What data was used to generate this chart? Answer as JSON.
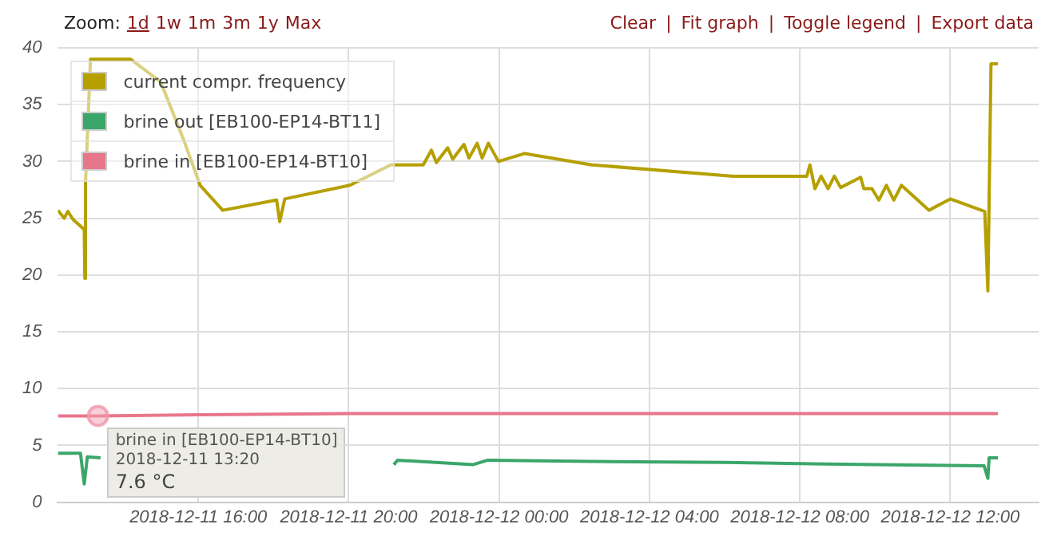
{
  "chart_data": {
    "type": "line",
    "xlim": [
      "2018-12-11T12:16",
      "2018-12-12T14:21"
    ],
    "xticks": [
      {
        "value": "2018-12-11T16:00",
        "label": "2018-12-11 16:00"
      },
      {
        "value": "2018-12-11T20:00",
        "label": "2018-12-11 20:00"
      },
      {
        "value": "2018-12-12T00:00",
        "label": "2018-12-12 00:00"
      },
      {
        "value": "2018-12-12T04:00",
        "label": "2018-12-12 04:00"
      },
      {
        "value": "2018-12-12T08:00",
        "label": "2018-12-12 08:00"
      },
      {
        "value": "2018-12-12T12:00",
        "label": "2018-12-12 12:00"
      }
    ],
    "ylim": [
      0,
      40
    ],
    "yticks": [
      0,
      5,
      10,
      15,
      20,
      25,
      30,
      35,
      40
    ],
    "grid": true,
    "legend": "top left",
    "marker": "none",
    "line_style": "solid",
    "series": [
      {
        "name": "current compr. frequency",
        "color": "#b5a000",
        "x": [
          "2018-12-11T12:16",
          "2018-12-11T12:26",
          "2018-12-11T12:32",
          "2018-12-11T12:40",
          "2018-12-11T12:58",
          "2018-12-11T12:59",
          "2018-12-11T13:00",
          "2018-12-11T13:08",
          "2018-12-11T14:12",
          "2018-12-11T15:00",
          "2018-12-11T15:36",
          "2018-12-11T16:03",
          "2018-12-11T16:39",
          "2018-12-11T18:05",
          "2018-12-11T18:10",
          "2018-12-11T18:18",
          "2018-12-11T20:02",
          "2018-12-11T21:07",
          "2018-12-11T21:59",
          "2018-12-11T22:12",
          "2018-12-11T22:20",
          "2018-12-11T22:38",
          "2018-12-11T22:46",
          "2018-12-11T23:04",
          "2018-12-11T23:12",
          "2018-12-11T23:25",
          "2018-12-11T23:33",
          "2018-12-11T23:43",
          "2018-12-11T23:59",
          "2018-12-12T00:41",
          "2018-12-12T02:28",
          "2018-12-12T06:14",
          "2018-12-12T08:11",
          "2018-12-12T08:16",
          "2018-12-12T08:24",
          "2018-12-12T08:34",
          "2018-12-12T08:45",
          "2018-12-12T08:55",
          "2018-12-12T09:05",
          "2018-12-12T09:37",
          "2018-12-12T09:42",
          "2018-12-12T09:55",
          "2018-12-12T10:06",
          "2018-12-12T10:18",
          "2018-12-12T10:30",
          "2018-12-12T10:42",
          "2018-12-12T11:26",
          "2018-12-12T12:00",
          "2018-12-12T12:55",
          "2018-12-12T13:00",
          "2018-12-12T13:05",
          "2018-12-12T13:16"
        ],
        "values": [
          25.7,
          25.0,
          25.6,
          24.9,
          24.0,
          19.7,
          28.0,
          39.0,
          39.0,
          37.0,
          32.0,
          27.9,
          25.7,
          26.6,
          24.7,
          26.7,
          27.9,
          29.7,
          29.7,
          31.0,
          29.9,
          31.2,
          30.2,
          31.5,
          30.3,
          31.6,
          30.3,
          31.6,
          30.0,
          30.7,
          29.7,
          28.7,
          28.7,
          29.7,
          27.6,
          28.7,
          27.6,
          28.7,
          27.7,
          28.6,
          27.6,
          27.6,
          26.6,
          27.9,
          26.6,
          27.9,
          25.7,
          26.7,
          25.6,
          18.6,
          38.6,
          38.6
        ]
      },
      {
        "name": "brine out [EB100-EP14-BT11]",
        "color": "#3aa66a",
        "x": [
          "2018-12-11T12:16",
          "2018-12-11T12:52",
          "2018-12-11T12:58",
          "2018-12-11T13:03",
          "2018-12-11T13:24",
          "2018-12-11T18:00",
          "2018-12-11T21:12",
          "2018-12-11T21:18",
          "2018-12-11T23:18",
          "2018-12-11T23:42",
          "2018-12-12T02:00",
          "2018-12-12T06:00",
          "2018-12-12T10:00",
          "2018-12-12T12:54",
          "2018-12-12T13:00",
          "2018-12-12T13:02",
          "2018-12-12T13:16"
        ],
        "values": [
          4.3,
          4.3,
          1.6,
          4.0,
          3.9,
          null,
          3.3,
          3.7,
          3.3,
          3.7,
          3.6,
          3.5,
          3.3,
          3.2,
          2.1,
          3.9,
          3.9
        ]
      },
      {
        "name": "brine in [EB100-EP14-BT10]",
        "color": "#e8768a",
        "x": [
          "2018-12-11T12:16",
          "2018-12-11T13:20",
          "2018-12-11T16:00",
          "2018-12-11T20:00",
          "2018-12-12T00:00",
          "2018-12-12T06:00",
          "2018-12-12T13:16"
        ],
        "values": [
          7.6,
          7.6,
          7.7,
          7.8,
          7.8,
          7.8,
          7.8
        ]
      }
    ],
    "annotations": [
      {
        "text": "brine in [EB100-EP14-BT10]\n2018-12-11 13:20\n7.6 °C",
        "x": "2018-12-11T13:20",
        "y": 7.6
      },
      "Zoom:",
      "1d",
      "1w",
      "1m",
      "3m",
      "1y",
      "Max",
      "Clear",
      "|",
      "Fit graph",
      "|",
      "Toggle legend",
      "|",
      "Export data"
    ]
  }
}
